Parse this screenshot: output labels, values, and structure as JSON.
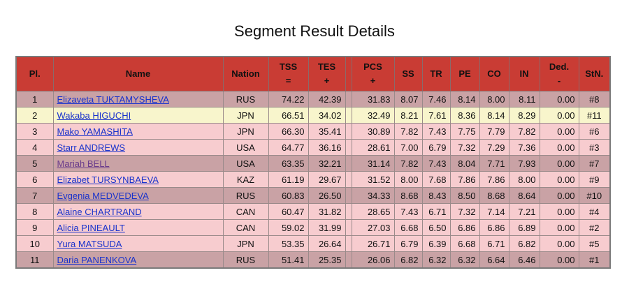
{
  "title": "Segment Result Details",
  "table": {
    "headers": [
      [
        "Pl."
      ],
      [
        "Name"
      ],
      [
        "Nation"
      ],
      [
        "TSS",
        "="
      ],
      [
        "TES",
        "+"
      ],
      [
        "PCS",
        "+"
      ],
      [
        "SS"
      ],
      [
        "TR"
      ],
      [
        "PE"
      ],
      [
        "CO"
      ],
      [
        "IN"
      ],
      [
        "Ded.",
        "-"
      ],
      [
        "StN."
      ]
    ],
    "rows": [
      [
        "1",
        "Elizaveta TUKTAMYSHEVA",
        "RUS",
        "74.22",
        "42.39",
        "31.83",
        "8.07",
        "7.46",
        "8.14",
        "8.00",
        "8.11",
        "0.00",
        "#8"
      ],
      [
        "2",
        "Wakaba HIGUCHI",
        "JPN",
        "66.51",
        "34.02",
        "32.49",
        "8.21",
        "7.61",
        "8.36",
        "8.14",
        "8.29",
        "0.00",
        "#11"
      ],
      [
        "3",
        "Mako YAMASHITA",
        "JPN",
        "66.30",
        "35.41",
        "30.89",
        "7.82",
        "7.43",
        "7.75",
        "7.79",
        "7.82",
        "0.00",
        "#6"
      ],
      [
        "4",
        "Starr ANDREWS",
        "USA",
        "64.77",
        "36.16",
        "28.61",
        "7.00",
        "6.79",
        "7.32",
        "7.29",
        "7.36",
        "0.00",
        "#3"
      ],
      [
        "5",
        "Mariah BELL",
        "USA",
        "63.35",
        "32.21",
        "31.14",
        "7.82",
        "7.43",
        "8.04",
        "7.71",
        "7.93",
        "0.00",
        "#7"
      ],
      [
        "6",
        "Elizabet TURSYNBAEVA",
        "KAZ",
        "61.19",
        "29.67",
        "31.52",
        "8.00",
        "7.68",
        "7.86",
        "7.86",
        "8.00",
        "0.00",
        "#9"
      ],
      [
        "7",
        "Evgenia MEDVEDEVA",
        "RUS",
        "60.83",
        "26.50",
        "34.33",
        "8.68",
        "8.43",
        "8.50",
        "8.68",
        "8.64",
        "0.00",
        "#10"
      ],
      [
        "8",
        "Alaine CHARTRAND",
        "CAN",
        "60.47",
        "31.82",
        "28.65",
        "7.43",
        "6.71",
        "7.32",
        "7.14",
        "7.21",
        "0.00",
        "#4"
      ],
      [
        "9",
        "Alicia PINEAULT",
        "CAN",
        "59.02",
        "31.99",
        "27.03",
        "6.68",
        "6.50",
        "6.86",
        "6.86",
        "6.89",
        "0.00",
        "#2"
      ],
      [
        "10",
        "Yura MATSUDA",
        "JPN",
        "53.35",
        "26.64",
        "26.71",
        "6.79",
        "6.39",
        "6.68",
        "6.71",
        "6.82",
        "0.00",
        "#5"
      ],
      [
        "11",
        "Daria PANENKOVA",
        "RUS",
        "51.41",
        "25.35",
        "26.06",
        "6.82",
        "6.32",
        "6.32",
        "6.64",
        "6.46",
        "0.00",
        "#1"
      ]
    ]
  }
}
